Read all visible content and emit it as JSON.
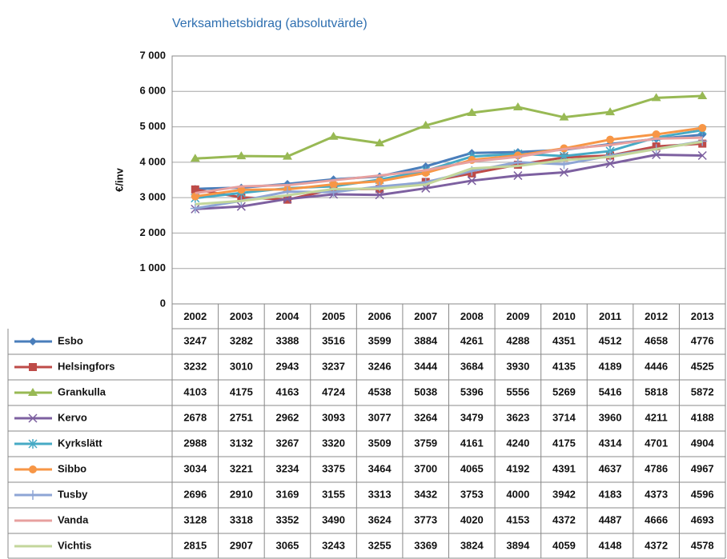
{
  "chart_data": {
    "type": "line",
    "title": "Verksamhetsbidrag (absolutvärde)",
    "y_label": "€/inv",
    "categories": [
      "2002",
      "2003",
      "2004",
      "2005",
      "2006",
      "2007",
      "2008",
      "2009",
      "2010",
      "2011",
      "2012",
      "2013"
    ],
    "ylim": [
      0,
      7000
    ],
    "yticks": [
      0,
      {
        "value": 1000,
        "label": "1 000"
      },
      {
        "value": 2000,
        "label": "2 000"
      },
      {
        "value": 3000,
        "label": "3 000"
      },
      {
        "value": 4000,
        "label": "4 000"
      },
      {
        "value": 5000,
        "label": "5 000"
      },
      {
        "value": 6000,
        "label": "6 000"
      },
      {
        "value": 7000,
        "label": "7 000"
      }
    ],
    "grid": true,
    "series": [
      {
        "name": "Esbo",
        "color": "#4a7ebb",
        "marker": "diamond",
        "values": [
          3247,
          3282,
          3388,
          3516,
          3599,
          3884,
          4261,
          4288,
          4351,
          4512,
          4658,
          4776
        ]
      },
      {
        "name": "Helsingfors",
        "color": "#be4b48",
        "marker": "square",
        "values": [
          3232,
          3010,
          2943,
          3237,
          3246,
          3444,
          3684,
          3930,
          4135,
          4189,
          4446,
          4525
        ]
      },
      {
        "name": "Grankulla",
        "color": "#98b954",
        "marker": "triangle",
        "values": [
          4103,
          4175,
          4163,
          4724,
          4538,
          5038,
          5396,
          5556,
          5269,
          5416,
          5818,
          5872
        ]
      },
      {
        "name": "Kervo",
        "color": "#7d60a0",
        "marker": "x",
        "values": [
          2678,
          2751,
          2962,
          3093,
          3077,
          3264,
          3479,
          3623,
          3714,
          3960,
          4211,
          4188
        ]
      },
      {
        "name": "Kyrkslätt",
        "color": "#46aac5",
        "marker": "star",
        "values": [
          2988,
          3132,
          3267,
          3320,
          3509,
          3759,
          4161,
          4240,
          4175,
          4314,
          4701,
          4904
        ]
      },
      {
        "name": "Sibbo",
        "color": "#f79646",
        "marker": "circle",
        "values": [
          3034,
          3221,
          3234,
          3375,
          3464,
          3700,
          4065,
          4192,
          4391,
          4637,
          4786,
          4967
        ]
      },
      {
        "name": "Tusby",
        "color": "#8ea5d5",
        "marker": "plus",
        "values": [
          2696,
          2910,
          3169,
          3155,
          3313,
          3432,
          3753,
          4000,
          3942,
          4183,
          4373,
          4596
        ]
      },
      {
        "name": "Vanda",
        "color": "#e7a09f",
        "marker": "none",
        "values": [
          3128,
          3318,
          3352,
          3490,
          3624,
          3773,
          4020,
          4153,
          4372,
          4487,
          4666,
          4693
        ]
      },
      {
        "name": "Vichtis",
        "color": "#c3d69b",
        "marker": "none",
        "values": [
          2815,
          2907,
          3065,
          3243,
          3255,
          3369,
          3824,
          3894,
          4059,
          4148,
          4372,
          4578
        ]
      }
    ]
  }
}
